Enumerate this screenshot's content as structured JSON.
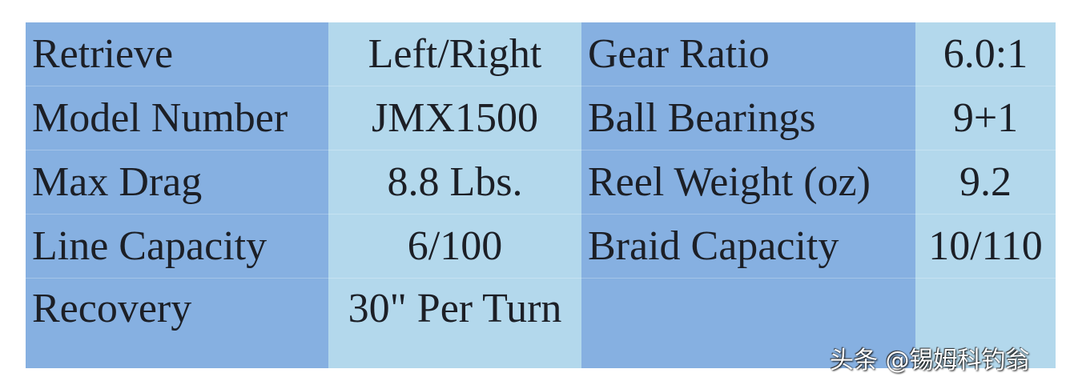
{
  "rows": [
    {
      "label1": "Retrieve",
      "value1": "Left/Right",
      "label2": "Gear Ratio",
      "value2": "6.0:1"
    },
    {
      "label1": "Model Number",
      "value1": "JMX1500",
      "label2": "Ball Bearings",
      "value2": "9+1"
    },
    {
      "label1": "Max Drag",
      "value1": "8.8 Lbs.",
      "label2": "Reel Weight (oz)",
      "value2": "9.2"
    },
    {
      "label1": "Line Capacity",
      "value1": "6/100",
      "label2": "Braid Capacity",
      "value2": "10/110"
    },
    {
      "label1": "Recovery",
      "value1": "30\" Per Turn",
      "label2": "",
      "value2": ""
    }
  ],
  "watermark": "头条 @锡姆科钓翁",
  "colors": {
    "label_bg": "#86b0e1",
    "value_bg": "#b3d8ec"
  }
}
